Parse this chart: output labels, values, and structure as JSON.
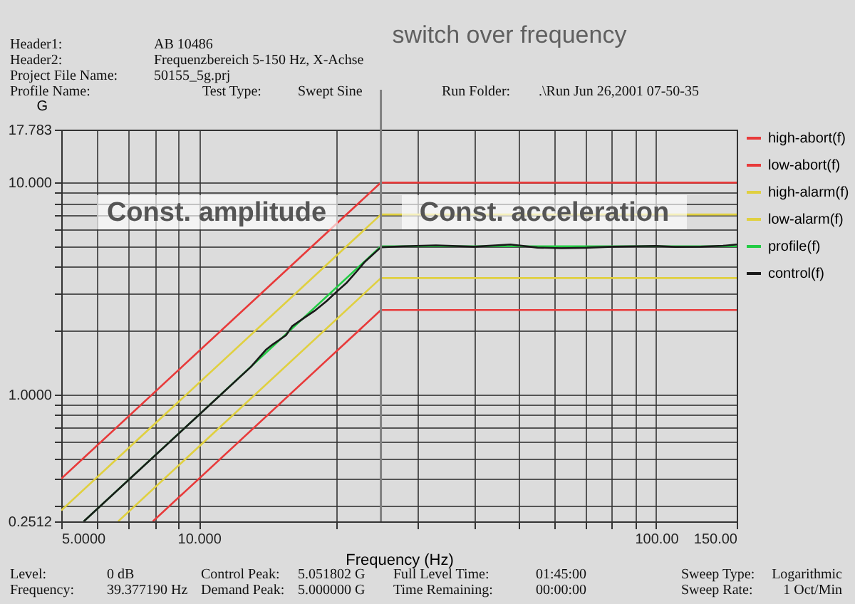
{
  "chart_data": {
    "type": "line",
    "xlabel": "Frequency (Hz)",
    "ylabel": "G",
    "log": "xy",
    "grid": true,
    "legend": "right",
    "marker": "none",
    "line_style": "solid",
    "xlim": [
      5,
      150
    ],
    "ylim": [
      0.2512,
      17.783
    ],
    "xticks": [
      {
        "value": 5,
        "label": "5.0000"
      },
      {
        "value": 6,
        "label": null
      },
      {
        "value": 7,
        "label": null
      },
      {
        "value": 8,
        "label": null
      },
      {
        "value": 9,
        "label": null
      },
      {
        "value": 10,
        "label": "10.000"
      },
      {
        "value": 20,
        "label": null
      },
      {
        "value": 30,
        "label": null
      },
      {
        "value": 40,
        "label": null
      },
      {
        "value": 50,
        "label": null
      },
      {
        "value": 60,
        "label": null
      },
      {
        "value": 70,
        "label": null
      },
      {
        "value": 80,
        "label": null
      },
      {
        "value": 90,
        "label": null
      },
      {
        "value": 100,
        "label": "100.00"
      },
      {
        "value": 150,
        "label": "150.00"
      }
    ],
    "yticks": [
      {
        "value": 0.2512,
        "label": "0.2512"
      },
      {
        "value": 0.3,
        "label": null
      },
      {
        "value": 0.4,
        "label": null
      },
      {
        "value": 0.5,
        "label": null
      },
      {
        "value": 0.6,
        "label": null
      },
      {
        "value": 0.7,
        "label": null
      },
      {
        "value": 0.8,
        "label": null
      },
      {
        "value": 0.9,
        "label": null
      },
      {
        "value": 1,
        "label": "1.0000"
      },
      {
        "value": 2,
        "label": null
      },
      {
        "value": 3,
        "label": null
      },
      {
        "value": 4,
        "label": null
      },
      {
        "value": 5,
        "label": null
      },
      {
        "value": 6,
        "label": null
      },
      {
        "value": 7,
        "label": null
      },
      {
        "value": 8,
        "label": null
      },
      {
        "value": 9,
        "label": null
      },
      {
        "value": 10,
        "label": "10.000"
      },
      {
        "value": 17.783,
        "label": "17.783"
      }
    ],
    "series": [
      {
        "name": "high-abort(f)",
        "color": "#e83a3a",
        "x": [
          5,
          25,
          150
        ],
        "values": [
          0.4,
          10,
          10
        ]
      },
      {
        "name": "low-abort(f)",
        "color": "#e83a3a",
        "x": [
          7.93,
          25,
          150
        ],
        "values": [
          0.2512,
          2.5,
          2.5
        ]
      },
      {
        "name": "high-alarm(f)",
        "color": "#e0d040",
        "x": [
          5,
          25,
          150
        ],
        "values": [
          0.283,
          7.07,
          7.07
        ]
      },
      {
        "name": "low-alarm(f)",
        "color": "#e0d040",
        "x": [
          6.66,
          25,
          150
        ],
        "values": [
          0.2512,
          3.54,
          3.54
        ]
      },
      {
        "name": "profile(f)",
        "color": "#22cc44",
        "x": [
          5.6,
          25,
          150
        ],
        "values": [
          0.2512,
          5,
          5
        ]
      },
      {
        "name": "control(f)",
        "color": "#1a1a1a",
        "x": [
          5.6,
          10,
          13,
          14,
          14.5,
          15.5,
          16,
          17,
          18,
          19,
          20,
          21,
          22,
          23,
          25,
          28,
          33,
          40,
          48,
          55,
          62,
          70,
          80,
          90,
          100,
          110,
          125,
          140,
          150
        ],
        "values": [
          0.2512,
          0.8,
          1.35,
          1.62,
          1.72,
          1.9,
          2.1,
          2.3,
          2.5,
          2.75,
          3.05,
          3.35,
          3.75,
          4.2,
          4.95,
          5.0,
          5.05,
          4.98,
          5.1,
          4.93,
          4.9,
          4.92,
          4.98,
          5.0,
          5.02,
          4.97,
          4.98,
          5.03,
          5.1
        ]
      }
    ],
    "ref_lines": [
      {
        "axis": "x",
        "value": 25,
        "label": "switch over frequency",
        "color": "#808080"
      }
    ],
    "annotations": [
      "Header1:",
      "AB 10486",
      "Header2:",
      "Frequenzbereich 5-150 Hz, X-Achse",
      "Project File Name:",
      "50155_5g.prj",
      "Profile Name:",
      "Test Type:",
      "Swept Sine",
      "Run Folder:",
      ".\\Run Jun 26,2001 07-50-35",
      "Level:",
      "0 dB",
      "Control Peak:",
      "5.051802 G",
      "Full Level Time:",
      "01:45:00",
      "Sweep Type:",
      "Logarithmic",
      "Frequency:",
      "39.377190 Hz",
      "Demand Peak:",
      "5.000000 G",
      "Time Remaining:",
      "00:00:00",
      "Sweep Rate:",
      "1 Oct/Min",
      "Const. amplitude",
      "Const. acceleration"
    ]
  }
}
